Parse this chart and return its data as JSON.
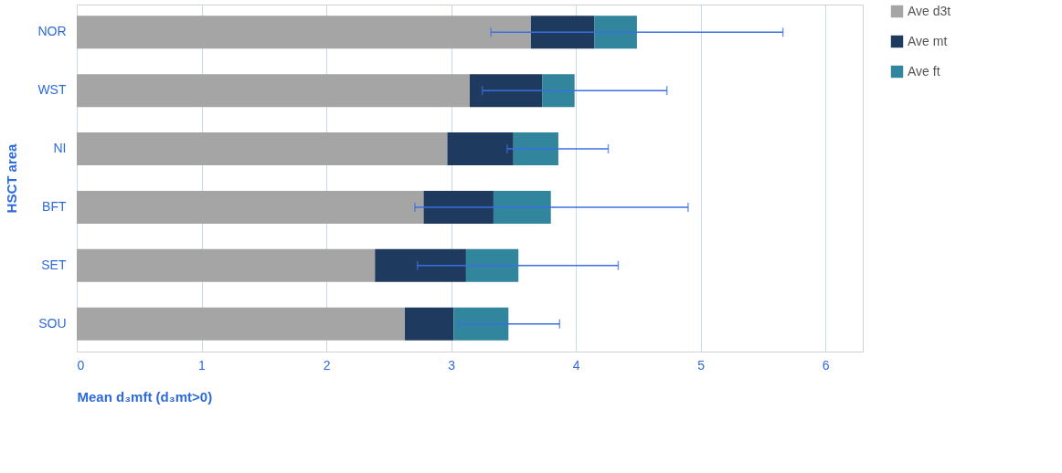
{
  "chart_data": {
    "type": "bar",
    "orientation": "horizontal",
    "stacked": true,
    "xlabel": "Mean d₃mft (d₃mt>0)",
    "ylabel": "HSCT area",
    "categories": [
      "NOR",
      "WST",
      "NI",
      "BFT",
      "SET",
      "SOU"
    ],
    "series": [
      {
        "name": "Ave d3t",
        "color": "#a5a5a5",
        "values": [
          3.64,
          3.15,
          2.97,
          2.78,
          2.39,
          2.63
        ]
      },
      {
        "name": "Ave mt",
        "color": "#1f3a5f",
        "values": [
          0.51,
          0.58,
          0.53,
          0.56,
          0.73,
          0.39
        ]
      },
      {
        "name": "Ave ft",
        "color": "#31859c",
        "values": [
          0.34,
          0.26,
          0.36,
          0.46,
          0.42,
          0.44
        ],
        "errors": [
          [
            3.32,
            5.66
          ],
          [
            3.25,
            4.73
          ],
          [
            3.45,
            4.26
          ],
          [
            2.71,
            4.9
          ],
          [
            2.73,
            4.34
          ],
          [
            3.06,
            3.87
          ]
        ]
      }
    ],
    "xlim": [
      0,
      6.3
    ],
    "xticks": [
      0,
      1,
      2,
      3,
      4,
      5,
      6
    ],
    "grid": "x",
    "legend": "right"
  }
}
